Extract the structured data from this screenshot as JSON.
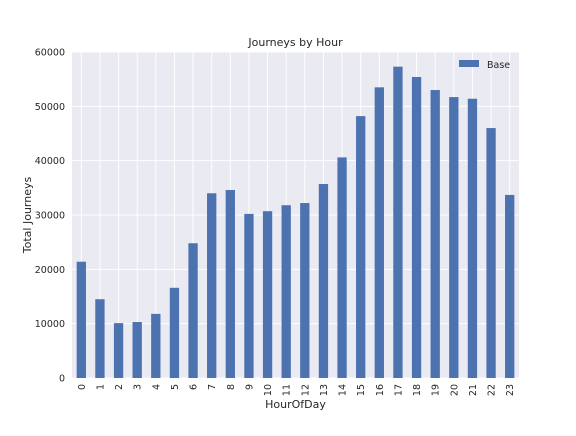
{
  "chart_data": {
    "type": "bar",
    "title": "Journeys by Hour",
    "xlabel": "HourOfDay",
    "ylabel": "Total Journeys",
    "categories": [
      "0",
      "1",
      "2",
      "3",
      "4",
      "5",
      "6",
      "7",
      "8",
      "9",
      "10",
      "11",
      "12",
      "13",
      "14",
      "15",
      "16",
      "17",
      "18",
      "19",
      "20",
      "21",
      "22",
      "23"
    ],
    "series": [
      {
        "name": "Base",
        "values": [
          21400,
          14500,
          10100,
          10300,
          11800,
          16600,
          24800,
          34000,
          34600,
          30200,
          30700,
          31800,
          32200,
          35700,
          40600,
          48200,
          53500,
          57300,
          55400,
          53000,
          51700,
          51400,
          46000,
          33700
        ]
      }
    ],
    "ylim": [
      0,
      60000
    ],
    "yticks": [
      0,
      10000,
      20000,
      30000,
      40000,
      50000,
      60000
    ],
    "grid": true,
    "legend_position": "top-right",
    "colors": {
      "bar": "#4c72b0",
      "plot_background": "#eaeaf2",
      "grid": "#ffffff"
    }
  }
}
